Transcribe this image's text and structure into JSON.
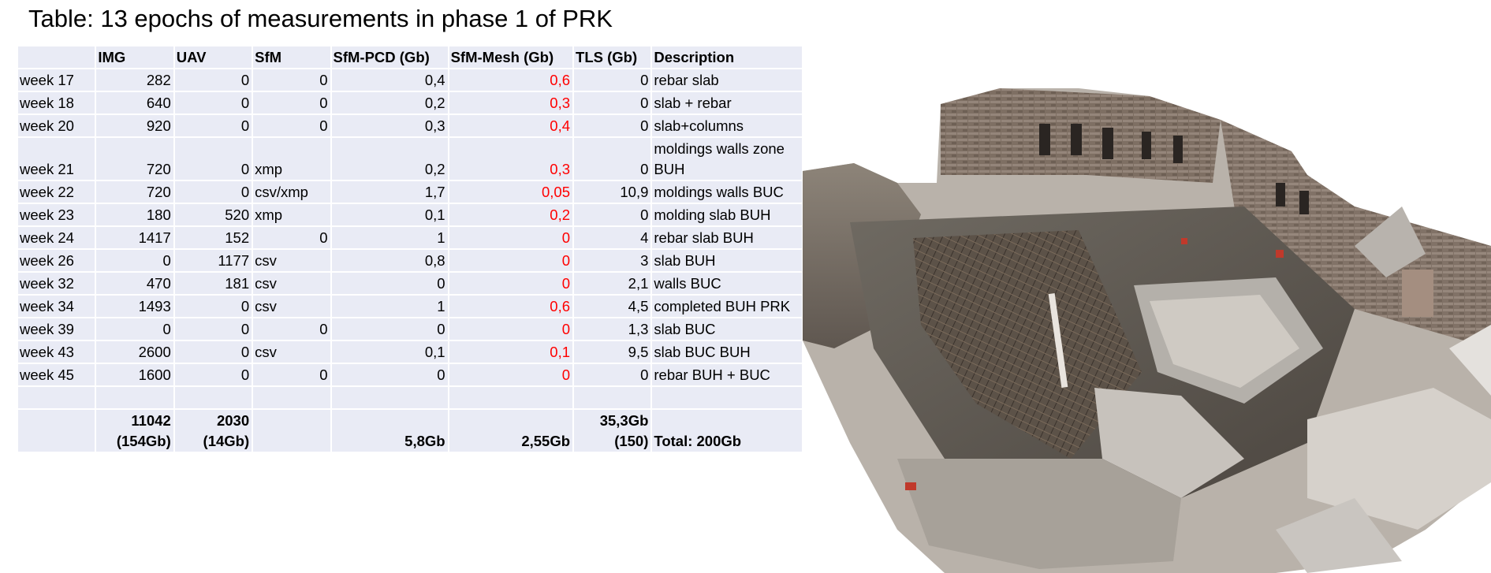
{
  "title": "Table: 13 epochs of measurements in phase 1 of PRK",
  "table": {
    "headers": [
      "",
      "IMG",
      "UAV",
      "SfM",
      "SfM-PCD (Gb)",
      "SfM-Mesh (Gb)",
      "TLS (Gb)",
      "Description"
    ],
    "rows": [
      {
        "week": "week 17",
        "img": "282",
        "uav": "0",
        "sfm": "0",
        "pcd": "0,4",
        "mesh": "0,6",
        "tls": "0",
        "desc": "rebar slab"
      },
      {
        "week": "week 18",
        "img": "640",
        "uav": "0",
        "sfm": "0",
        "pcd": "0,2",
        "mesh": "0,3",
        "tls": "0",
        "desc": "slab + rebar"
      },
      {
        "week": "week 20",
        "img": "920",
        "uav": "0",
        "sfm": "0",
        "pcd": "0,3",
        "mesh": "0,4",
        "tls": "0",
        "desc": "slab+columns"
      },
      {
        "week": "week 21",
        "img": "720",
        "uav": "0",
        "sfm": "xmp",
        "pcd": "0,2",
        "mesh": "0,3",
        "tls": "0",
        "desc": "moldings walls zone BUH"
      },
      {
        "week": "week 22",
        "img": "720",
        "uav": "0",
        "sfm": "csv/xmp",
        "pcd": "1,7",
        "mesh": "0,05",
        "tls": "10,9",
        "desc": "moldings walls BUC"
      },
      {
        "week": "week 23",
        "img": "180",
        "uav": "520",
        "sfm": "xmp",
        "pcd": "0,1",
        "mesh": "0,2",
        "tls": "0",
        "desc": "molding slab BUH"
      },
      {
        "week": "week 24",
        "img": "1417",
        "uav": "152",
        "sfm": "0",
        "pcd": "1",
        "mesh": "0",
        "tls": "4",
        "desc": "rebar slab BUH"
      },
      {
        "week": "week 26",
        "img": "0",
        "uav": "1177",
        "sfm": "csv",
        "pcd": "0,8",
        "mesh": "0",
        "tls": "3",
        "desc": "slab BUH"
      },
      {
        "week": "week 32",
        "img": "470",
        "uav": "181",
        "sfm": "csv",
        "pcd": "0",
        "mesh": "0",
        "tls": "2,1",
        "desc": "walls BUC"
      },
      {
        "week": "week 34",
        "img": "1493",
        "uav": "0",
        "sfm": "csv",
        "pcd": "1",
        "mesh": "0,6",
        "tls": "4,5",
        "desc": "completed BUH PRK"
      },
      {
        "week": "week 39",
        "img": "0",
        "uav": "0",
        "sfm": "0",
        "pcd": "0",
        "mesh": "0",
        "tls": "1,3",
        "desc": "slab BUC"
      },
      {
        "week": "week 43",
        "img": "2600",
        "uav": "0",
        "sfm": "csv",
        "pcd": "0,1",
        "mesh": "0,1",
        "tls": "9,5",
        "desc": "slab BUC BUH"
      },
      {
        "week": "week 45",
        "img": "1600",
        "uav": "0",
        "sfm": "0",
        "pcd": "0",
        "mesh": "0",
        "tls": "0",
        "desc": "rebar BUH + BUC"
      }
    ],
    "totals": {
      "img_line1": "11042",
      "img_line2": "(154Gb)",
      "uav_line1": "2030",
      "uav_line2": "(14Gb)",
      "pcd": "5,8Gb",
      "mesh": "2,55Gb",
      "tls_line1": "35,3Gb",
      "tls_line2": "(150)",
      "desc": "Total: 200Gb"
    }
  },
  "colors": {
    "cell_background": "#e9ebf5",
    "mesh_values": "#ff0000",
    "text": "#000000"
  }
}
